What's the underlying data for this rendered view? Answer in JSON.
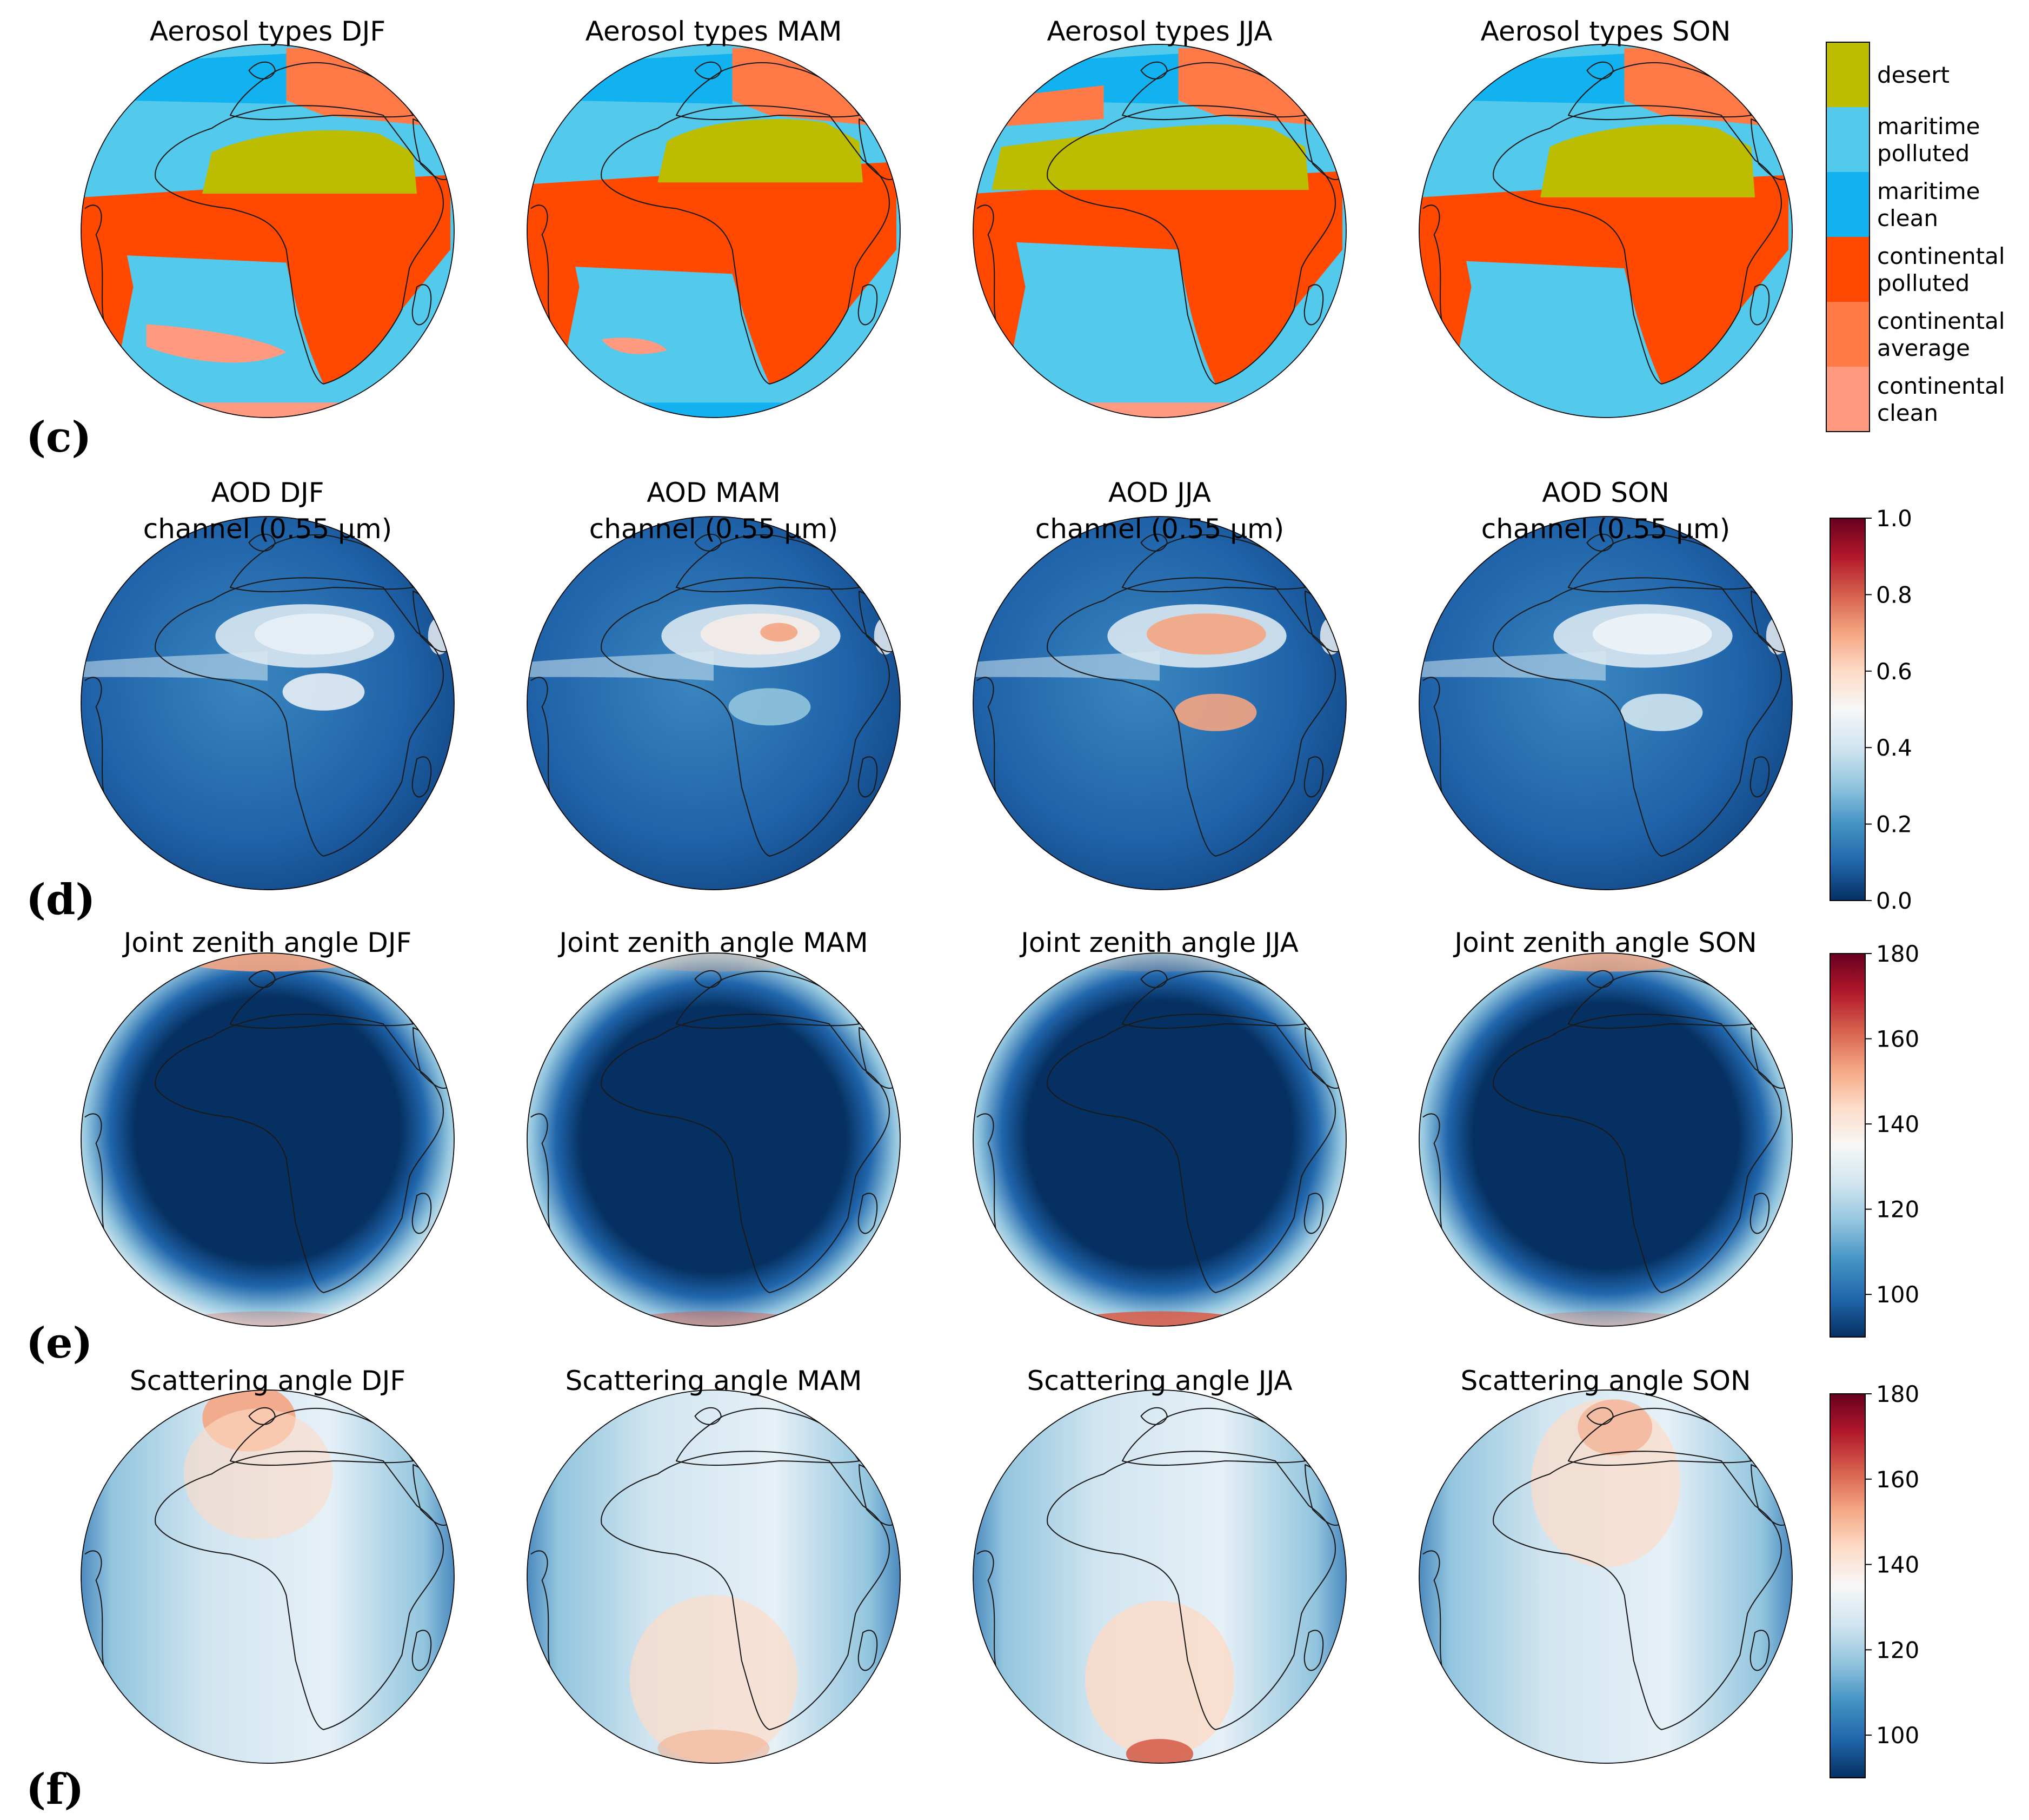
{
  "colors": {
    "desert": "#bcbc00",
    "maritime_polluted": "#53c9ec",
    "maritime_clean": "#12b2f0",
    "continental_polluted": "#ff4800",
    "continental_average": "#ff7a46",
    "continental_clean": "#ff9a80",
    "coastline": "#1a1a1a"
  },
  "rows": [
    {
      "id": "c",
      "label": "(c)",
      "kind": "categorical",
      "titles": [
        "Aerosol types DJF",
        "Aerosol types MAM",
        "Aerosol types JJA",
        "Aerosol types SON"
      ],
      "legend": {
        "type": "categorical",
        "entries": [
          {
            "label_lines": [
              "desert"
            ],
            "color": "#bcbc00"
          },
          {
            "label_lines": [
              "maritime",
              "polluted"
            ],
            "color": "#53c9ec"
          },
          {
            "label_lines": [
              "maritime",
              "clean"
            ],
            "color": "#12b2f0"
          },
          {
            "label_lines": [
              "continental",
              "polluted"
            ],
            "color": "#ff4800"
          },
          {
            "label_lines": [
              "continental",
              "average"
            ],
            "color": "#ff7a46"
          },
          {
            "label_lines": [
              "continental",
              "clean"
            ],
            "color": "#ff9a80"
          }
        ]
      }
    },
    {
      "id": "d",
      "label": "(d)",
      "kind": "aod",
      "titles": [
        "AOD DJF",
        "AOD MAM",
        "AOD JJA",
        "AOD SON"
      ],
      "subtitle": "channel (0.55 μm)",
      "colorbar": {
        "colormap": "RdBu_r",
        "range": [
          0.0,
          1.0
        ],
        "ticks": [
          "0.0",
          "0.2",
          "0.4",
          "0.6",
          "0.8",
          "1.0"
        ]
      }
    },
    {
      "id": "e",
      "label": "(e)",
      "kind": "zenith",
      "titles": [
        "Joint zenith angle DJF",
        "Joint zenith angle MAM",
        "Joint zenith angle JJA",
        "Joint zenith angle SON"
      ],
      "colorbar": {
        "colormap": "RdBu_r",
        "range": [
          90,
          180
        ],
        "ticks": [
          "100",
          "120",
          "140",
          "160",
          "180"
        ]
      }
    },
    {
      "id": "f",
      "label": "(f)",
      "kind": "scatter",
      "titles": [
        "Scattering angle DJF",
        "Scattering angle MAM",
        "Scattering angle JJA",
        "Scattering angle SON"
      ],
      "colorbar": {
        "colormap": "RdBu_r",
        "range": [
          90,
          180
        ],
        "ticks": [
          "100",
          "120",
          "140",
          "160",
          "180"
        ]
      }
    }
  ]
}
